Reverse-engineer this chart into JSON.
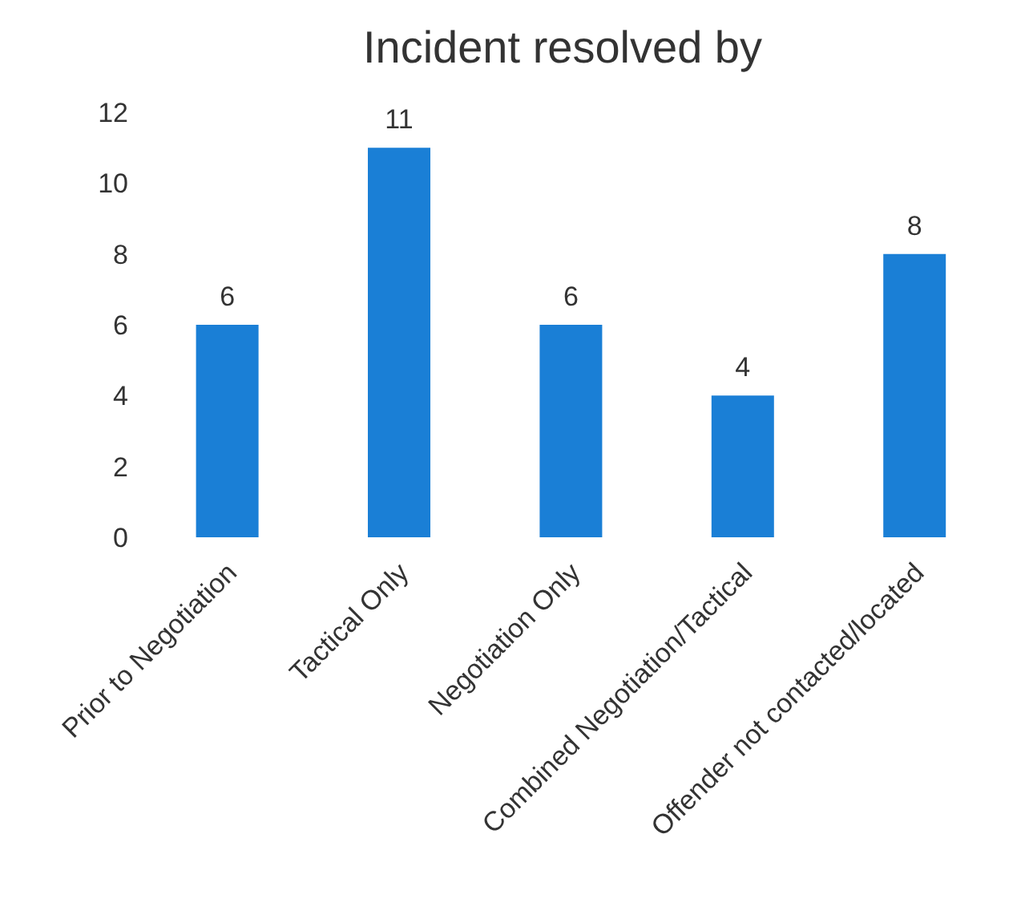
{
  "chart_data": {
    "type": "bar",
    "title": "Incident resolved by",
    "categories": [
      "Prior to Negotiation",
      "Tactical Only",
      "Negotiation Only",
      "Combined Negotiation/Tactical",
      "Offender not contacted/located"
    ],
    "values": [
      6,
      11,
      6,
      4,
      8
    ],
    "color": "#1a7fd6",
    "ylim": [
      0,
      12
    ],
    "yticks": [
      0,
      2,
      4,
      6,
      8,
      10,
      12
    ],
    "grid": false,
    "data_labels": true
  }
}
